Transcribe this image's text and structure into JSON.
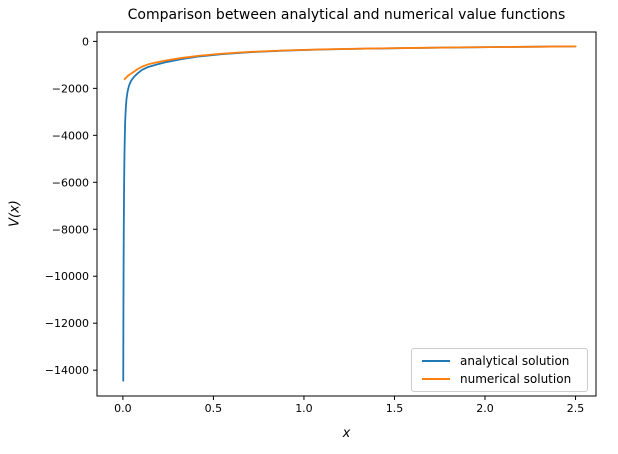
{
  "chart_data": {
    "type": "line",
    "title": "Comparison between analytical and numerical value functions",
    "xlabel": "x",
    "ylabel": "V(x)",
    "xlim": [
      -0.143,
      2.613
    ],
    "ylim": [
      -15100,
      400
    ],
    "xticks": [
      0.0,
      0.5,
      1.0,
      1.5,
      2.0,
      2.5
    ],
    "xtick_labels": [
      "0.0",
      "0.5",
      "1.0",
      "1.5",
      "2.0",
      "2.5"
    ],
    "yticks": [
      0,
      -2000,
      -4000,
      -6000,
      -8000,
      -10000,
      -12000,
      -14000
    ],
    "ytick_labels": [
      "0",
      "−2000",
      "−4000",
      "−6000",
      "−8000",
      "−10000",
      "−12000",
      "−14000"
    ],
    "grid": false,
    "legend_position": "lower right",
    "series": [
      {
        "name": "analytical solution",
        "color": "#1f77b4",
        "x": [
          0.002,
          0.003,
          0.004,
          0.005,
          0.006,
          0.007,
          0.008,
          0.009,
          0.011,
          0.013,
          0.016,
          0.02,
          0.026,
          0.034,
          0.045,
          0.06,
          0.08,
          0.105,
          0.14,
          0.18,
          0.24,
          0.32,
          0.42,
          0.55,
          0.7,
          0.9,
          1.1,
          1.35,
          1.6,
          1.85,
          2.1,
          2.3,
          2.5
        ],
        "y": [
          -14450,
          -11400,
          -9300,
          -7850,
          -6750,
          -5900,
          -5230,
          -4680,
          -3900,
          -3320,
          -2850,
          -2450,
          -2130,
          -1880,
          -1680,
          -1520,
          -1370,
          -1215,
          -1090,
          -1000,
          -880,
          -760,
          -640,
          -540,
          -460,
          -390,
          -345,
          -308,
          -280,
          -258,
          -240,
          -226,
          -212
        ]
      },
      {
        "name": "numerical solution",
        "color": "#ff7f0e",
        "x": [
          0.01,
          0.015,
          0.02,
          0.03,
          0.045,
          0.06,
          0.08,
          0.105,
          0.14,
          0.18,
          0.24,
          0.32,
          0.42,
          0.55,
          0.7,
          0.9,
          1.1,
          1.35,
          1.6,
          1.85,
          2.1,
          2.3,
          2.5
        ],
        "y": [
          -1610,
          -1565,
          -1525,
          -1450,
          -1370,
          -1295,
          -1185,
          -1080,
          -975,
          -905,
          -810,
          -710,
          -610,
          -520,
          -448,
          -383,
          -340,
          -305,
          -278,
          -256,
          -238,
          -225,
          -211
        ]
      }
    ]
  },
  "colors": {
    "background": "#ffffff",
    "text": "#000000",
    "spine": "#000000",
    "legend_border": "#cccccc",
    "analytical": "#1f77b4",
    "numerical": "#ff7f0e"
  }
}
